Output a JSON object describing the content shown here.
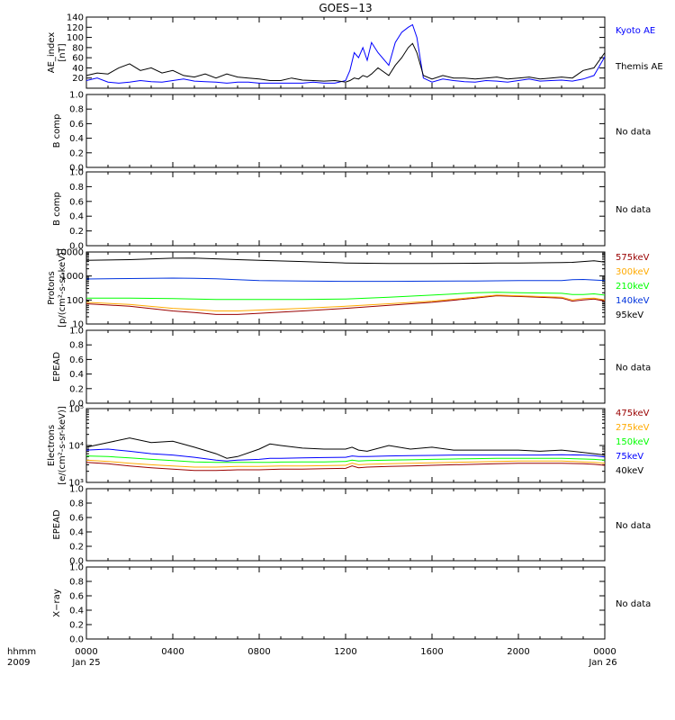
{
  "title": "GOES−13",
  "time": {
    "corner_label_top": "hhmm",
    "corner_label_bottom": "2009",
    "ticks": [
      "0000",
      "0400",
      "0800",
      "1200",
      "1600",
      "2000",
      "0000"
    ],
    "tick_hours": [
      0,
      4,
      8,
      12,
      16,
      20,
      24
    ],
    "date_left": "Jan 25",
    "date_right": "Jan 26"
  },
  "colors": {
    "black": "#000000",
    "blue": "#0000ff",
    "green": "#00ff00",
    "orange": "#ffaa00",
    "darkred": "#990000",
    "brightblue": "#0033dd"
  },
  "chart_data": [
    {
      "type": "line",
      "ylabel": [
        "AE_index",
        "[nT]"
      ],
      "ylim": [
        0,
        140
      ],
      "yticks": [
        "20",
        "40",
        "60",
        "80",
        "100",
        "120",
        "140"
      ],
      "ytick_values": [
        20,
        40,
        60,
        80,
        100,
        120,
        140
      ],
      "x_hours": [
        0,
        0.5,
        1,
        1.5,
        2,
        2.5,
        3,
        3.5,
        4,
        4.5,
        5,
        5.5,
        6,
        6.5,
        7,
        7.5,
        8,
        8.5,
        9,
        9.5,
        10,
        10.5,
        11,
        11.5,
        12,
        12.2,
        12.4,
        12.6,
        12.8,
        13,
        13.2,
        13.5,
        14,
        14.3,
        14.6,
        14.9,
        15.1,
        15.3,
        15.6,
        16,
        16.5,
        17,
        17.5,
        18,
        18.5,
        19,
        19.5,
        20,
        20.5,
        21,
        21.5,
        22,
        22.5,
        23,
        23.5,
        24
      ],
      "series": [
        {
          "name": "Kyoto AE",
          "color": "#0000ff",
          "values": [
            15,
            20,
            12,
            10,
            12,
            15,
            13,
            12,
            15,
            18,
            14,
            13,
            12,
            10,
            12,
            12,
            10,
            10,
            10,
            10,
            10,
            12,
            10,
            10,
            15,
            35,
            70,
            60,
            80,
            55,
            90,
            70,
            45,
            90,
            110,
            120,
            125,
            100,
            20,
            12,
            18,
            15,
            13,
            12,
            15,
            14,
            12,
            15,
            18,
            14,
            15,
            16,
            14,
            18,
            25,
            62
          ]
        },
        {
          "name": "Themis AE",
          "color": "#000000",
          "values": [
            25,
            30,
            28,
            40,
            48,
            35,
            40,
            30,
            35,
            25,
            22,
            28,
            20,
            28,
            22,
            20,
            18,
            15,
            15,
            20,
            16,
            15,
            14,
            15,
            12,
            15,
            20,
            18,
            25,
            22,
            28,
            40,
            25,
            45,
            60,
            80,
            88,
            70,
            25,
            18,
            25,
            20,
            20,
            18,
            20,
            22,
            18,
            20,
            22,
            18,
            20,
            22,
            20,
            35,
            40,
            70
          ]
        }
      ]
    },
    {
      "type": "line",
      "ylabel": [
        "B comp"
      ],
      "ylim": [
        0,
        1.0
      ],
      "yticks": [
        "0.0",
        "0.2",
        "0.4",
        "0.6",
        "0.8",
        "1.0"
      ],
      "ytick_values": [
        0,
        0.2,
        0.4,
        0.6,
        0.8,
        1.0
      ],
      "note": "No data"
    },
    {
      "type": "line",
      "ylabel": [
        "B comp"
      ],
      "ylim": [
        0,
        1.0
      ],
      "yticks": [
        "0.0",
        "0.2",
        "0.4",
        "0.6",
        "0.8",
        "1.0"
      ],
      "ytick_values": [
        0,
        0.2,
        0.4,
        0.6,
        0.8,
        1.0
      ],
      "note": "No data"
    },
    {
      "type": "line",
      "log_scale": true,
      "ylabel": [
        "Protons",
        "[p/(cm²-s-sr-keV)]"
      ],
      "ylim": [
        10,
        10000
      ],
      "yticks": [
        "10",
        "100",
        "1000",
        "10000"
      ],
      "ytick_values": [
        10,
        100,
        1000,
        10000
      ],
      "x_hours": [
        0,
        2,
        4,
        5,
        6,
        7,
        8,
        10,
        12,
        14,
        16,
        18,
        19,
        20,
        22,
        22.5,
        23,
        23.5,
        24
      ],
      "series": [
        {
          "name": "575keV",
          "color": "#990000",
          "values": [
            70,
            55,
            35,
            30,
            25,
            25,
            28,
            35,
            45,
            60,
            80,
            120,
            150,
            140,
            120,
            90,
            100,
            110,
            90
          ]
        },
        {
          "name": "300keV",
          "color": "#ffaa00",
          "values": [
            80,
            65,
            45,
            40,
            35,
            35,
            38,
            45,
            55,
            70,
            90,
            130,
            160,
            150,
            130,
            100,
            115,
            120,
            100
          ]
        },
        {
          "name": "210keV",
          "color": "#00ff00",
          "values": [
            120,
            120,
            115,
            110,
            105,
            105,
            105,
            105,
            110,
            130,
            160,
            200,
            210,
            200,
            190,
            170,
            170,
            180,
            160
          ]
        },
        {
          "name": "140keV",
          "color": "#0033dd",
          "values": [
            750,
            780,
            820,
            800,
            760,
            700,
            650,
            620,
            600,
            600,
            610,
            620,
            630,
            640,
            650,
            700,
            720,
            680,
            650
          ]
        },
        {
          "name": "95keV",
          "color": "#000000",
          "values": [
            4500,
            4800,
            5500,
            5600,
            5200,
            4800,
            4500,
            4000,
            3500,
            3300,
            3300,
            3400,
            3500,
            3500,
            3600,
            3700,
            4000,
            4300,
            3800
          ]
        }
      ]
    },
    {
      "type": "line",
      "ylabel": [
        "EPEAD"
      ],
      "ylim": [
        0,
        1.0
      ],
      "yticks": [
        "0.0",
        "0.2",
        "0.4",
        "0.6",
        "0.8",
        "1.0"
      ],
      "ytick_values": [
        0,
        0.2,
        0.4,
        0.6,
        0.8,
        1.0
      ],
      "note": "No data"
    },
    {
      "type": "line",
      "log_scale": true,
      "ylabel": [
        "Electrons",
        "[e/(cm²-s-sr-keV)]"
      ],
      "ylim": [
        1000,
        100000
      ],
      "yticks": [
        "10³",
        "10⁴",
        "10⁵"
      ],
      "ytick_values": [
        1000,
        10000,
        100000
      ],
      "x_hours": [
        0,
        1,
        2,
        3,
        4,
        5,
        6,
        6.5,
        7,
        8,
        8.5,
        9,
        10,
        11,
        12,
        12.3,
        12.6,
        13,
        14,
        15,
        16,
        17,
        18,
        19,
        20,
        21,
        22,
        23,
        23.5,
        24
      ],
      "series": [
        {
          "name": "475keV",
          "color": "#990000",
          "values": [
            3500,
            3200,
            2800,
            2500,
            2300,
            2100,
            2100,
            2150,
            2200,
            2200,
            2250,
            2300,
            2300,
            2350,
            2400,
            2800,
            2500,
            2600,
            2700,
            2800,
            2900,
            3000,
            3100,
            3200,
            3300,
            3300,
            3300,
            3200,
            3100,
            2900
          ]
        },
        {
          "name": "275keV",
          "color": "#ffaa00",
          "values": [
            4000,
            3700,
            3300,
            3000,
            2800,
            2600,
            2600,
            2650,
            2700,
            2700,
            2750,
            2800,
            2800,
            2850,
            2900,
            3300,
            3000,
            3100,
            3200,
            3300,
            3400,
            3500,
            3600,
            3700,
            3800,
            3800,
            3800,
            3600,
            3500,
            3300
          ]
        },
        {
          "name": "150keV",
          "color": "#00ff00",
          "values": [
            5200,
            5000,
            4600,
            4200,
            3900,
            3600,
            3500,
            3500,
            3500,
            3500,
            3500,
            3550,
            3600,
            3600,
            3700,
            4000,
            3800,
            3900,
            4000,
            4100,
            4200,
            4300,
            4400,
            4500,
            4500,
            4500,
            4500,
            4300,
            4200,
            4000
          ]
        },
        {
          "name": "75keV",
          "color": "#0000ff",
          "values": [
            7500,
            8000,
            7000,
            6000,
            5500,
            4800,
            4000,
            3800,
            4000,
            4200,
            4500,
            4500,
            4600,
            4700,
            4800,
            5200,
            5000,
            5000,
            5200,
            5300,
            5400,
            5500,
            5500,
            5500,
            5500,
            5500,
            5600,
            5500,
            5300,
            4900
          ]
        },
        {
          "name": "40keV",
          "color": "#000000",
          "values": [
            9000,
            12000,
            16000,
            12000,
            13000,
            9000,
            6000,
            4500,
            5000,
            8000,
            11000,
            10000,
            8500,
            8000,
            8000,
            9000,
            7500,
            7000,
            10000,
            8000,
            9000,
            7500,
            7500,
            7500,
            7500,
            7000,
            7500,
            6500,
            6000,
            5500
          ]
        }
      ]
    },
    {
      "type": "line",
      "ylabel": [
        "EPEAD"
      ],
      "ylim": [
        0,
        1.0
      ],
      "yticks": [
        "0.0",
        "0.2",
        "0.4",
        "0.6",
        "0.8",
        "1.0"
      ],
      "ytick_values": [
        0,
        0.2,
        0.4,
        0.6,
        0.8,
        1.0
      ],
      "note": "No data"
    },
    {
      "type": "line",
      "ylabel": [
        "X−ray"
      ],
      "ylim": [
        0,
        1.0
      ],
      "yticks": [
        "0.0",
        "0.2",
        "0.4",
        "0.6",
        "0.8",
        "1.0"
      ],
      "ytick_values": [
        0,
        0.2,
        0.4,
        0.6,
        0.8,
        1.0
      ],
      "note": "No data"
    }
  ]
}
